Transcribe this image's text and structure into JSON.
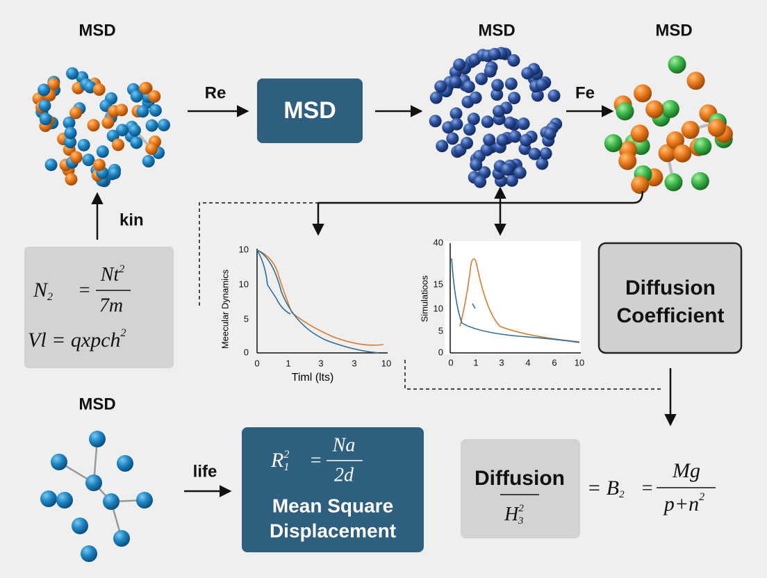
{
  "top": {
    "cluster_left": {
      "label": "MSD"
    },
    "arrow1": {
      "label": "Re"
    },
    "box": {
      "label": "MSD"
    },
    "cluster_mid": {
      "label": "MSD"
    },
    "arrow2": {
      "label": "Fe"
    },
    "cluster_right": {
      "label": "MSD"
    }
  },
  "kin_arrow": {
    "label": "kin"
  },
  "formula_box": {
    "line1": {
      "lhs": "N",
      "lhs_sub": "2",
      "eq": "=",
      "num": "Nt",
      "num_sup": "2",
      "den": "7m"
    },
    "line2": {
      "text": "Vl = qxpch",
      "sup": "2"
    }
  },
  "chart_left": {
    "ylabel": "Meecular Dynamics",
    "xlabel": "Timl (lts)",
    "yticks": [
      "10",
      "10",
      "5",
      "0"
    ],
    "xticks": [
      "0",
      "1",
      "3",
      "3",
      "10"
    ]
  },
  "chart_right": {
    "ylabel": "Simulatioos",
    "yticks": [
      "40",
      "15",
      "10",
      "5",
      "0"
    ],
    "xticks": [
      "0",
      "1",
      "3",
      "4",
      "6",
      "10"
    ]
  },
  "diffusion_box": {
    "line1": "Diffusion",
    "line2": "Coefficient"
  },
  "bottom": {
    "molecule": {
      "label": "MSD"
    },
    "arrow": {
      "label": "life"
    },
    "msd_box": {
      "lhs": "R",
      "lhs_sup": "2",
      "lhs_sub": "1",
      "eq": "=",
      "num": "Na",
      "den": "2d",
      "line1": "Mean Square",
      "line2": "Displacement"
    },
    "diffusion": {
      "label": "Diffusion",
      "den": "H",
      "den_sup": "2",
      "den_sub": "3"
    },
    "equation": {
      "lhs": "= B",
      "lhs_sub": "2",
      "eq": "=",
      "num": "Mg",
      "den": "p+n",
      "den_sup": "2"
    }
  }
}
